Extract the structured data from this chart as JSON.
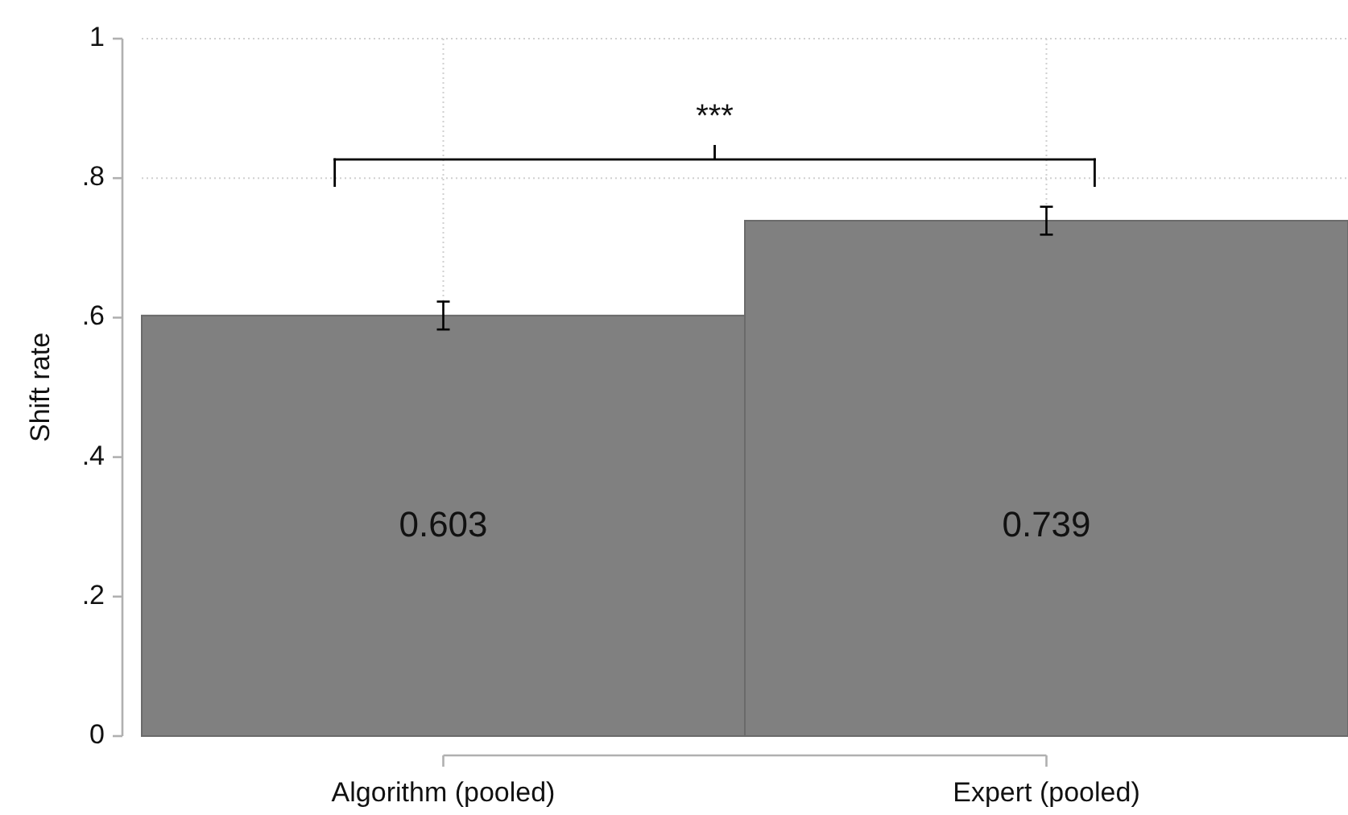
{
  "chart_data": {
    "type": "bar",
    "ylabel": "Shift rate",
    "categories": [
      "Algorithm (pooled)",
      "Expert (pooled)"
    ],
    "values": [
      0.603,
      0.739
    ],
    "errors": [
      0.02,
      0.02
    ],
    "color": "#808080",
    "data_labels": true,
    "ylim": [
      0,
      1
    ],
    "yticks": [
      0,
      {
        "value": 0.2,
        "label": ".2"
      },
      {
        "value": 0.4,
        "label": ".4"
      },
      {
        "value": 0.6,
        "label": ".6"
      },
      {
        "value": 0.8,
        "label": ".8"
      },
      1
    ],
    "grid": true,
    "annotations": [
      "***"
    ]
  }
}
